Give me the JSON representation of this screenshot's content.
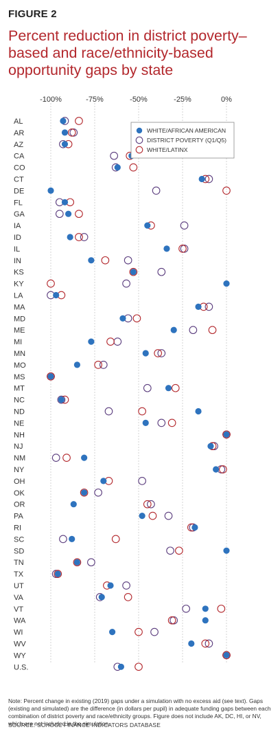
{
  "figure_label": "FIGURE 2",
  "title": "Percent reduction in district poverty–based and race/ethnicity-based opportunity gaps by state",
  "note": "Note: Percent change in existing (2019) gaps under a simulation with no excess aid (see text). Gaps (existing and simulated) are the difference (in dollars per pupil) in adequate funding gaps between each combination of district poverty and race/ethnicity groups. Figure does not include AK, DC, HI, or NV, which are not included in the simulation.",
  "source": "SOURCE: SCHOOL FINANCE INDICATORS DATABASE",
  "colors": {
    "blue": "#2e73be",
    "purple": "#5b3d7e",
    "red": "#b3282d",
    "grid": "#c9c9c9"
  },
  "chart_data": {
    "type": "scatter",
    "title": "Percent reduction in district poverty–based and race/ethnicity-based opportunity gaps by state",
    "xlim": [
      -100,
      0
    ],
    "x_ticks": [
      -100,
      -75,
      -50,
      -25,
      0
    ],
    "x_tick_labels": [
      "-100%",
      "-75%",
      "-50%",
      "-25%",
      "0%"
    ],
    "grid": "vertical",
    "legend_position": "top-right",
    "categories": [
      "AL",
      "AR",
      "AZ",
      "CA",
      "CO",
      "CT",
      "DE",
      "FL",
      "GA",
      "IA",
      "ID",
      "IL",
      "IN",
      "KS",
      "KY",
      "LA",
      "MA",
      "MD",
      "ME",
      "MI",
      "MN",
      "MO",
      "MS",
      "MT",
      "NC",
      "ND",
      "NE",
      "NH",
      "NJ",
      "NM",
      "NY",
      "OH",
      "OK",
      "OR",
      "PA",
      "RI",
      "SC",
      "SD",
      "TN",
      "TX",
      "UT",
      "VA",
      "VT",
      "WA",
      "WI",
      "WV",
      "WY",
      "U.S."
    ],
    "series": [
      {
        "name": "WHITE/AFRICAN AMERICAN",
        "marker": "filled-circle",
        "color": "#2e73be",
        "values": [
          -93,
          -92,
          -92,
          -54,
          -62,
          -14,
          -100,
          -92,
          -90,
          -45,
          -89,
          -34,
          -77,
          -53,
          0,
          -97,
          -16,
          -59,
          -30,
          -77,
          -46,
          -85,
          -100,
          -33,
          -94,
          -16,
          -46,
          0,
          -9,
          -81,
          -6,
          -70,
          -81,
          -87,
          -48,
          -18,
          -88,
          0,
          -85,
          -96,
          -66,
          -71,
          -12,
          -12,
          -65,
          -20,
          0,
          -60
        ]
      },
      {
        "name": "DISTRICT POVERTY (Q1/Q5)",
        "marker": "hollow-circle",
        "color": "#5b3d7e",
        "values": [
          -92,
          -87,
          -93,
          -64,
          -63,
          -10,
          -40,
          -95,
          -95,
          -24,
          -81,
          -24,
          -56,
          -37,
          -57,
          -100,
          -10,
          -56,
          -19,
          -62,
          -37,
          -70,
          -100,
          -45,
          -94,
          -67,
          -37,
          0,
          -7,
          -97,
          -3,
          -48,
          -73,
          -43,
          -33,
          -19,
          -93,
          -32,
          -77,
          -97,
          -57,
          -72,
          -23,
          -30,
          -41,
          -10,
          0,
          -62
        ]
      },
      {
        "name": "WHITE/LATINX",
        "marker": "hollow-circle",
        "color": "#b3282d",
        "values": [
          -84,
          -88,
          -90,
          -55,
          -53,
          -12,
          0,
          -89,
          -84,
          -43,
          -84,
          -25,
          -69,
          -53,
          -100,
          -94,
          -13,
          -51,
          -8,
          -66,
          -39,
          -73,
          -100,
          -29,
          -92,
          -48,
          -31,
          0,
          -8,
          -91,
          -2,
          -67,
          -81,
          -45,
          -42,
          -20,
          -63,
          -27,
          -85,
          -96,
          -68,
          -56,
          -3,
          -31,
          -50,
          -12,
          0,
          -50
        ]
      }
    ]
  }
}
